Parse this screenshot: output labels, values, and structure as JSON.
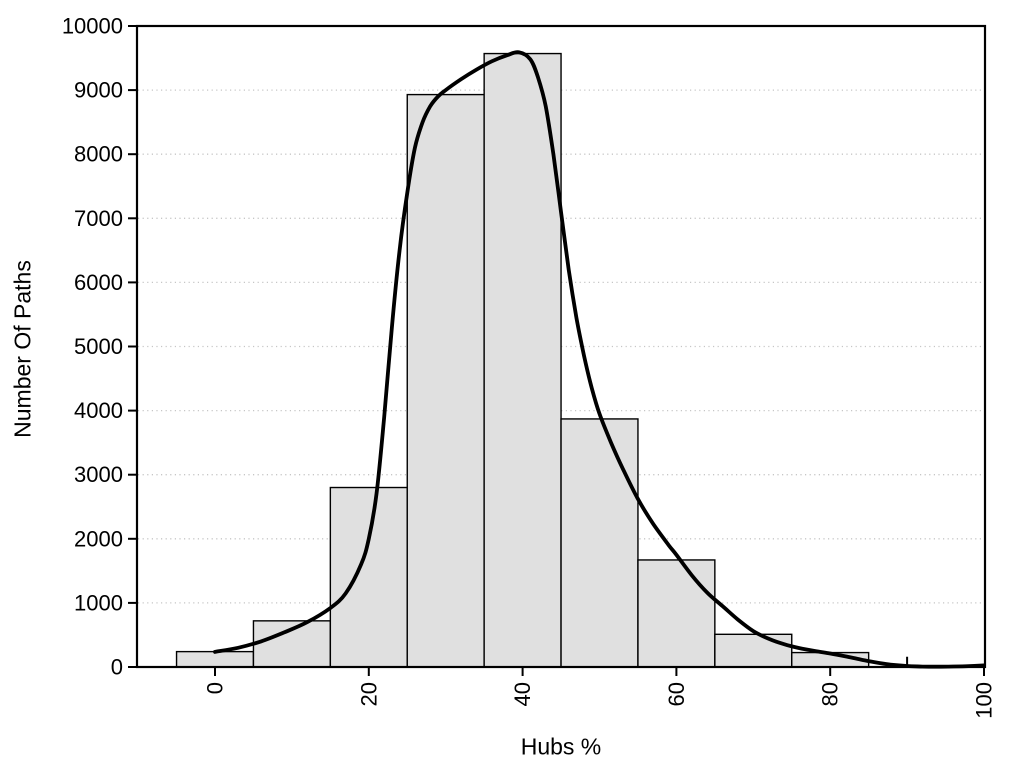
{
  "chart_data": {
    "type": "bar",
    "subtype": "histogram-with-density-curve",
    "title": "",
    "xlabel": "Hubs %",
    "ylabel": "Number Of Paths",
    "xlim": [
      -10.1,
      100.1
    ],
    "ylim": [
      0,
      10000
    ],
    "x_ticks": [
      0,
      20,
      40,
      60,
      80,
      100
    ],
    "y_ticks": [
      0,
      1000,
      2000,
      3000,
      4000,
      5000,
      6000,
      7000,
      8000,
      9000,
      10000
    ],
    "grid": "horizontal-dotted",
    "legend": "none",
    "bin_width": 10,
    "bars": {
      "centers": [
        0,
        10,
        20,
        30,
        40,
        50,
        60,
        70,
        80
      ],
      "values": [
        240,
        720,
        2800,
        8930,
        9570,
        3870,
        1670,
        510,
        225
      ]
    },
    "spike": {
      "x": 90,
      "value": 160
    },
    "curve": {
      "name": "density-fit",
      "points": [
        [
          0,
          235
        ],
        [
          3,
          300
        ],
        [
          6,
          400
        ],
        [
          9,
          540
        ],
        [
          12,
          700
        ],
        [
          15,
          920
        ],
        [
          17,
          1150
        ],
        [
          19,
          1600
        ],
        [
          20,
          2000
        ],
        [
          21,
          2700
        ],
        [
          22,
          3900
        ],
        [
          23,
          5300
        ],
        [
          24,
          6500
        ],
        [
          25,
          7400
        ],
        [
          26,
          8100
        ],
        [
          27,
          8500
        ],
        [
          28,
          8750
        ],
        [
          29,
          8900
        ],
        [
          30,
          9000
        ],
        [
          32,
          9170
        ],
        [
          34,
          9320
        ],
        [
          36,
          9450
        ],
        [
          38,
          9545
        ],
        [
          39.5,
          9590
        ],
        [
          41,
          9480
        ],
        [
          42,
          9200
        ],
        [
          43,
          8750
        ],
        [
          44,
          8000
        ],
        [
          45,
          7100
        ],
        [
          46,
          6200
        ],
        [
          47,
          5450
        ],
        [
          48,
          4850
        ],
        [
          49,
          4350
        ],
        [
          50,
          3950
        ],
        [
          51.5,
          3500
        ],
        [
          53,
          3100
        ],
        [
          55,
          2620
        ],
        [
          57,
          2230
        ],
        [
          59,
          1900
        ],
        [
          60,
          1750
        ],
        [
          62,
          1430
        ],
        [
          64,
          1160
        ],
        [
          66,
          950
        ],
        [
          68,
          740
        ],
        [
          70,
          560
        ],
        [
          72,
          440
        ],
        [
          74,
          355
        ],
        [
          76,
          295
        ],
        [
          78,
          250
        ],
        [
          80,
          210
        ],
        [
          82,
          165
        ],
        [
          84,
          115
        ],
        [
          86,
          70
        ],
        [
          88,
          35
        ],
        [
          90,
          15
        ],
        [
          92,
          7
        ],
        [
          94,
          5
        ],
        [
          96,
          8
        ],
        [
          98,
          14
        ],
        [
          100,
          25
        ]
      ]
    },
    "colors": {
      "bar_fill": "#e0e0e0",
      "bar_stroke": "#000000",
      "curve": "#000000",
      "grid": "#c6c6c6",
      "frame": "#000000",
      "text": "#000000",
      "background": "#ffffff"
    }
  }
}
